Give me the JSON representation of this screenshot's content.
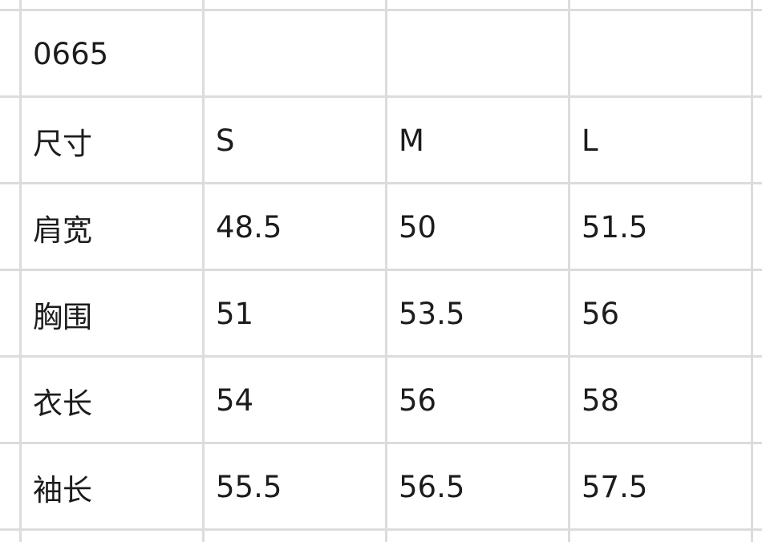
{
  "table": {
    "rows": [
      [
        "0665",
        "",
        "",
        ""
      ],
      [
        "尺寸",
        "S",
        "M",
        "L"
      ],
      [
        "肩宽",
        "48.5",
        "50",
        "51.5"
      ],
      [
        "胸围",
        "51",
        "53.5",
        "56"
      ],
      [
        "衣长",
        "54",
        "56",
        "58"
      ],
      [
        "袖长",
        "55.5",
        "56.5",
        "57.5"
      ]
    ]
  },
  "colors": {
    "grid": "#dcdcdc",
    "text": "#1c1c1e"
  }
}
